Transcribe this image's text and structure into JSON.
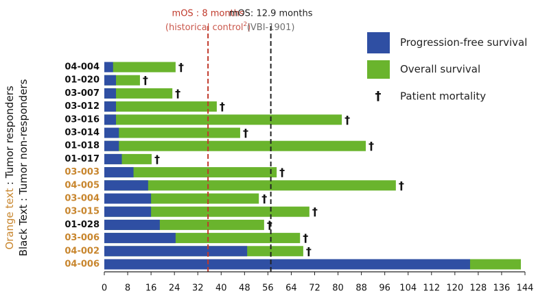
{
  "chart_data": {
    "type": "swimmer",
    "categories": [
      "04-004",
      "01-020",
      "03-007",
      "03-012",
      "03-016",
      "03-014",
      "01-018",
      "01-017",
      "03-003",
      "04-005",
      "03-004",
      "03-015",
      "01-028",
      "03-006",
      "04-002",
      "04-006"
    ],
    "label_colors": [
      "#111111",
      "#111111",
      "#111111",
      "#111111",
      "#111111",
      "#111111",
      "#111111",
      "#111111",
      "#c8862e",
      "#c8862e",
      "#c8862e",
      "#c8862e",
      "#111111",
      "#c8862e",
      "#c8862e",
      "#c8862e"
    ],
    "series": [
      {
        "name": "Progression-free survival",
        "color": "#2f4fa3",
        "values": [
          3,
          4,
          4,
          4,
          4,
          5,
          5,
          6,
          10,
          15,
          16,
          16,
          19,
          24.4,
          48.9,
          125.2
        ]
      },
      {
        "name": "Overall survival",
        "color": "#6ab42d",
        "values": [
          24.4,
          12.2,
          23.3,
          38.5,
          81.3,
          46.5,
          89.5,
          16.2,
          59,
          99.8,
          52.9,
          70.2,
          54.7,
          67,
          68.1,
          142.6
        ]
      }
    ],
    "mortality": [
      true,
      true,
      true,
      true,
      true,
      true,
      true,
      true,
      true,
      true,
      true,
      true,
      true,
      true,
      true,
      false
    ],
    "mortality_symbol": "†",
    "mortality_label": "Patient mortality",
    "xlim": [
      0,
      144
    ],
    "xticks": [
      0,
      8,
      16,
      24,
      32,
      40,
      48,
      56,
      64,
      72,
      80,
      88,
      96,
      104,
      112,
      120,
      128,
      136,
      144
    ],
    "reference_lines": [
      {
        "value": 35.5,
        "color": "#c0392b",
        "title": "mOS : 8 months",
        "subtitle_start": "(historical control",
        "subtitle_sup": "2",
        "subtitle_end": ")"
      },
      {
        "value": 57,
        "color": "#222222",
        "title": "mOS: 12.9 months",
        "subtitle_start": "(VBI-1901)"
      }
    ],
    "side_label": [
      {
        "key": "Orange text",
        "key_color": "#c8862e",
        "text": " : Tumor responders"
      },
      {
        "key": "Black Text",
        "key_color": "#111111",
        "text": " : Tumor non-responders"
      }
    ]
  }
}
